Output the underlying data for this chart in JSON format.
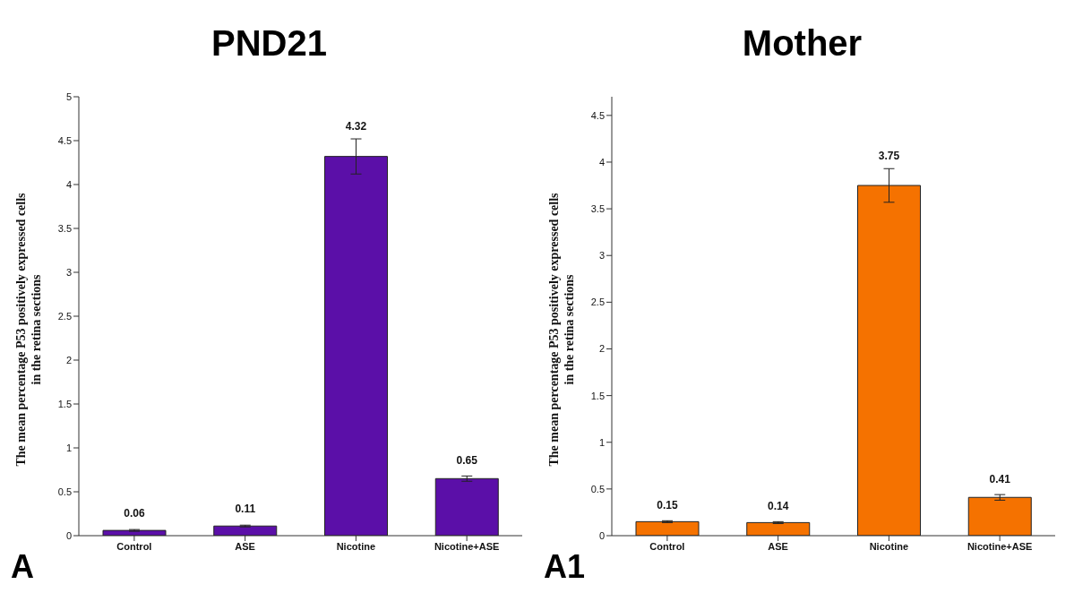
{
  "chart_data": [
    {
      "type": "bar",
      "title": "PND21",
      "ylabel": "The mean percentage P53 positively expressed cells in the retina sections",
      "categories": [
        "Control",
        "ASE",
        "Nicotine",
        "Nicotine+ASE"
      ],
      "color": "#5b0fa8",
      "values": [
        0.06,
        0.11,
        4.32,
        0.65
      ],
      "errors": [
        0.01,
        0.01,
        0.2,
        0.03
      ],
      "data_labels": true,
      "ylim": [
        0,
        5
      ],
      "yticks": [
        0,
        0.5,
        1,
        1.5,
        2,
        2.5,
        3,
        3.5,
        4,
        4.5,
        5
      ],
      "grid": false,
      "legend": false,
      "annotations": [
        "A"
      ]
    },
    {
      "type": "bar",
      "title": "Mother",
      "ylabel": "The mean percentage P53 positively expressed cells in the retina sections",
      "categories": [
        "Control",
        "ASE",
        "Nicotine",
        "Nicotine+ASE"
      ],
      "color": "#f57200",
      "values": [
        0.15,
        0.14,
        3.75,
        0.41
      ],
      "errors": [
        0.01,
        0.01,
        0.18,
        0.03
      ],
      "data_labels": true,
      "ylim": [
        0,
        4.7
      ],
      "yticks": [
        0,
        0.5,
        1,
        1.5,
        2,
        2.5,
        3,
        3.5,
        4,
        4.5
      ],
      "grid": false,
      "legend": false,
      "annotations": [
        "A1"
      ]
    }
  ]
}
